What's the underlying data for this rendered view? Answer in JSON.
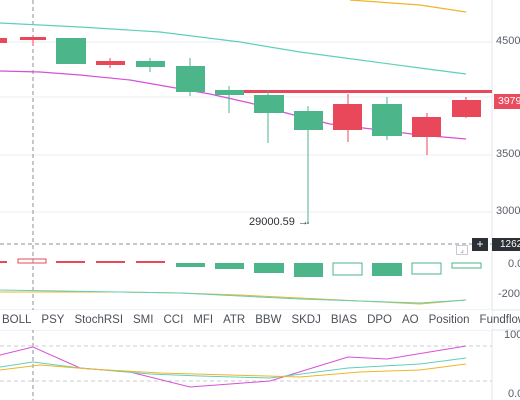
{
  "main_chart": {
    "price_axis_labels": [
      "4500",
      "3500",
      "3000"
    ],
    "current_price_label": "3979",
    "crosshair_value_label": "1262",
    "low_annotation": "29000.59 →",
    "colors": {
      "up": "#4db58a",
      "down": "#e8485a",
      "boll_mid": "#5fd0b8",
      "boll_low": "#d94fd9",
      "boll_up": "#f0b429"
    }
  },
  "indicator_tabs": [
    "BOLL",
    "PSY",
    "StochRSI",
    "SMI",
    "CCI",
    "MFI",
    "ATR",
    "BBW",
    "SKDJ",
    "BIAS",
    "DPO",
    "AO",
    "Position",
    "Fundflow"
  ],
  "macd_panel": {
    "axis_labels": [
      "0.0",
      "-200"
    ]
  },
  "lower_panel": {
    "axis_labels": [
      "100",
      "0.0"
    ]
  },
  "icons": {
    "plus": "plus-icon",
    "corner": "corner-icon"
  }
}
